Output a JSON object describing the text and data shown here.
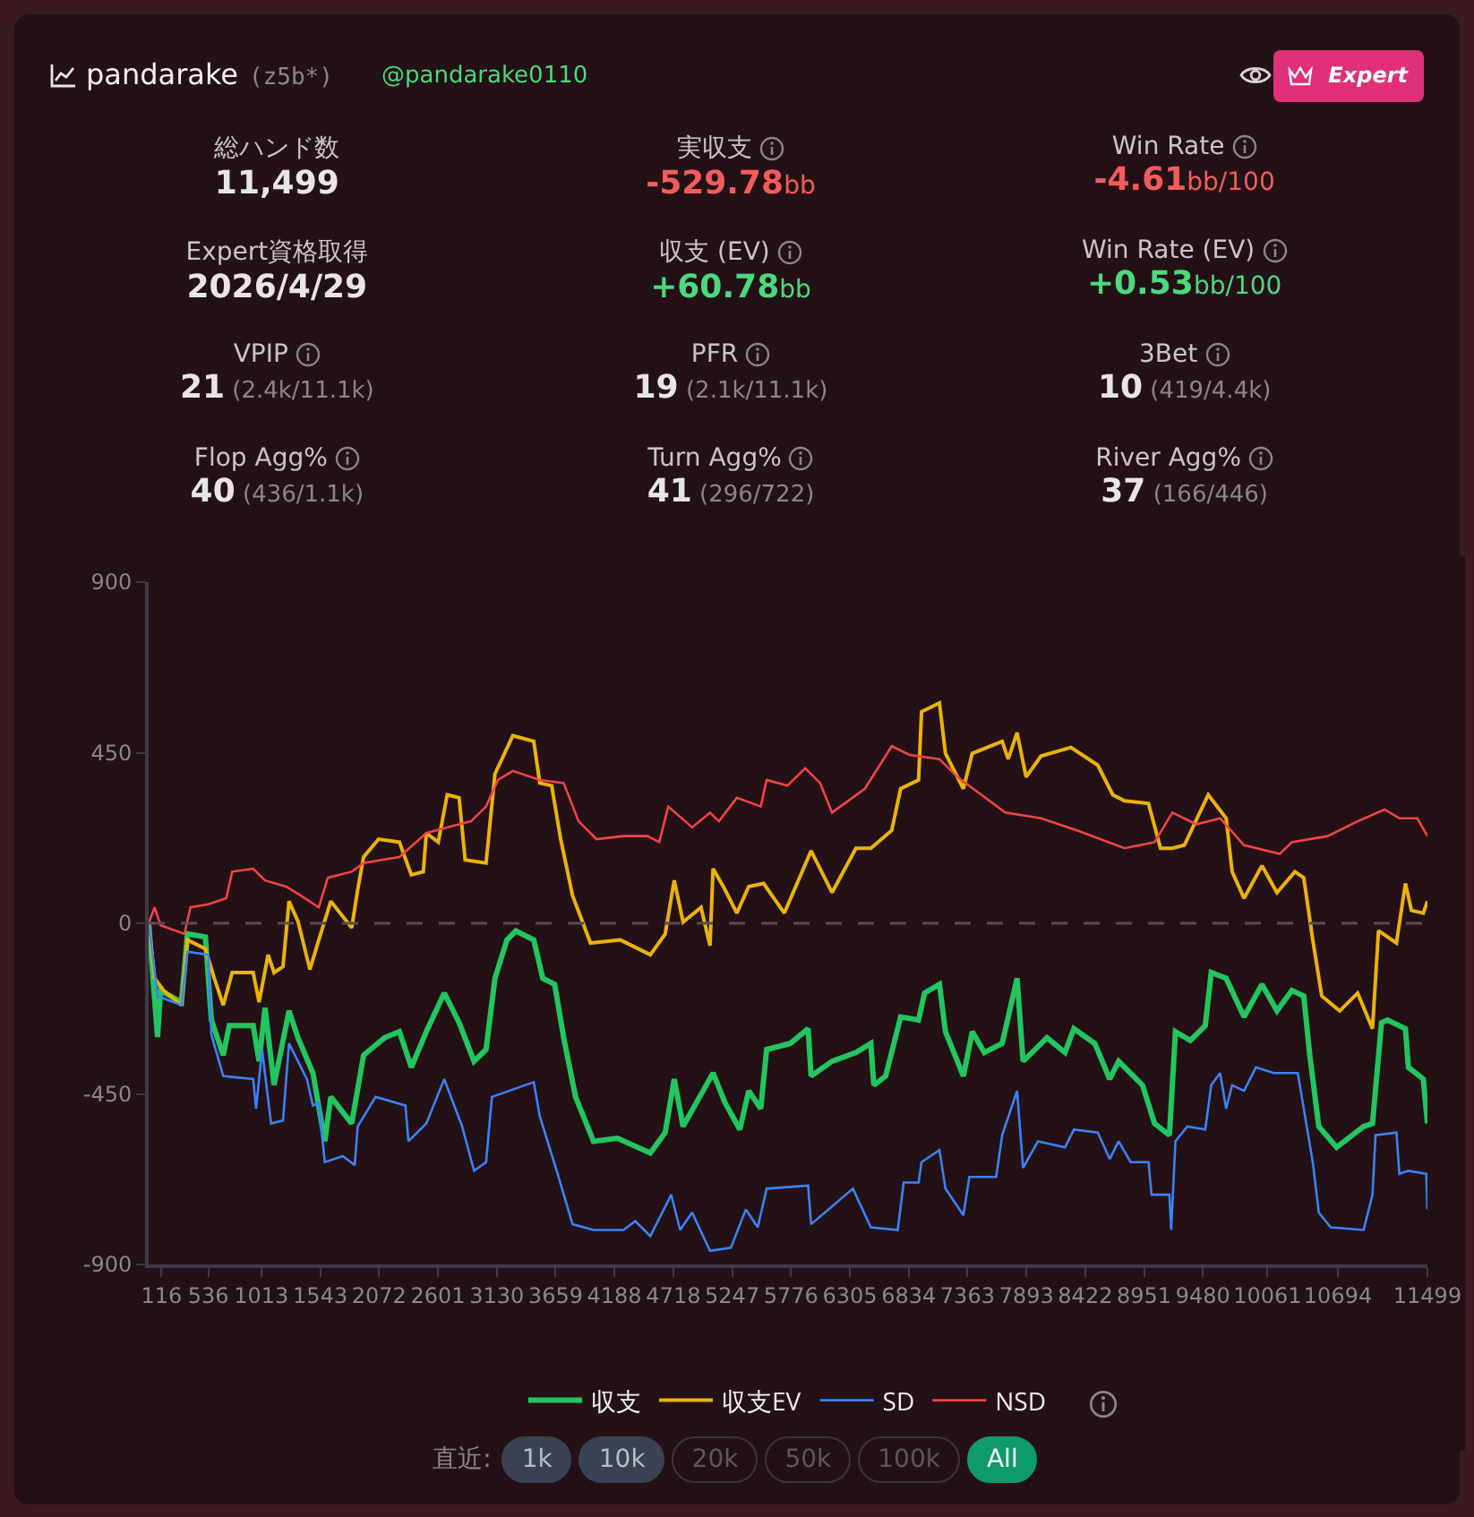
{
  "chart_data": [
    {
      "type": "other",
      "title": "pandarake",
      "subtitle": "(z5b*)",
      "annotations": [
        "@pandarake0110",
        "Expert",
        "総ハンド数",
        "11,499",
        "実収支",
        "-529.78bb",
        "Win Rate",
        "-4.61bb/100",
        "Expert資格取得",
        "2026/4/29",
        "収支 (EV)",
        "+60.78bb",
        "Win Rate (EV)",
        "+0.53bb/100",
        "VPIP",
        "21 (2.4k/11.1k)",
        "PFR",
        "19 (2.1k/11.1k)",
        "3Bet",
        "10 (419/4.4k)",
        "Flop Agg%",
        "40 (436/1.1k)",
        "Turn Agg%",
        "41 (296/722)",
        "River Agg%",
        "37 (166/446)"
      ],
      "colors": [
        "#e8e4ea",
        "#f25c5c",
        "#f25c5c",
        "#e8e4ea",
        "#4cd97b",
        "#4cd97b",
        "#e8e4ea",
        "#e8e4ea",
        "#e8e4ea",
        "#e8e4ea",
        "#e8e4ea",
        "#e8e4ea"
      ]
    },
    {
      "type": "line",
      "xlim": [
        0,
        11499
      ],
      "ylim": [
        -900,
        900
      ],
      "xticks": [
        116,
        536,
        1013,
        1543,
        2072,
        2601,
        3130,
        3659,
        4188,
        4718,
        5247,
        5776,
        6305,
        6834,
        7363,
        7893,
        8422,
        8951,
        9480,
        10061,
        10694,
        11499
      ],
      "yticks": [
        -900,
        -450,
        0,
        450,
        900
      ],
      "grid": false,
      "legend": "bottom",
      "marker": "none",
      "line_style": "solid",
      "ref_lines": [
        {
          "axis": "y",
          "value": 0,
          "line_style": "dashed",
          "color": "#5a4a55"
        }
      ],
      "annotations": [
        "直近:",
        "1k",
        "10k",
        "20k",
        "50k",
        "100k",
        "All"
      ],
      "series": [
        {
          "name": "収支",
          "color": "#22c55e",
          "x": [
            0,
            80,
            107,
            295,
            349,
            510,
            564,
            671,
            725,
            940,
            993,
            1047,
            1128,
            1262,
            1343,
            1477,
            1584,
            1638,
            1826,
            1933,
            2121,
            2255,
            2362,
            2497,
            2658,
            2792,
            2926,
            3034,
            3114,
            3222,
            3302,
            3463,
            3544,
            3651,
            3732,
            3839,
            4000,
            4215,
            4511,
            4645,
            4726,
            4806,
            5075,
            5182,
            5316,
            5396,
            5504,
            5557,
            5769,
            5930,
            5957,
            6145,
            6360,
            6494,
            6521,
            6628,
            6762,
            6923,
            6977,
            7111,
            7165,
            7326,
            7406,
            7514,
            7675,
            7809,
            7863,
            8078,
            8240,
            8320,
            8508,
            8642,
            8722,
            8937,
            9045,
            9179,
            9233,
            9367,
            9501,
            9555,
            9689,
            9850,
            10011,
            10146,
            10280,
            10387,
            10441,
            10522,
            10683,
            10925,
            11005,
            11086,
            11140,
            11301,
            11328,
            11462,
            11499
          ],
          "values": [
            0,
            -300,
            -177,
            -208,
            -28,
            -36,
            -255,
            -348,
            -270,
            -270,
            -364,
            -223,
            -427,
            -231,
            -302,
            -395,
            -575,
            -458,
            -528,
            -348,
            -302,
            -286,
            -380,
            -286,
            -184,
            -262,
            -364,
            -333,
            -145,
            -44,
            -20,
            -44,
            -145,
            -161,
            -302,
            -458,
            -575,
            -567,
            -606,
            -552,
            -411,
            -536,
            -395,
            -473,
            -544,
            -442,
            -489,
            -333,
            -317,
            -278,
            -403,
            -364,
            -341,
            -317,
            -427,
            -403,
            -247,
            -255,
            -184,
            -161,
            -286,
            -403,
            -286,
            -341,
            -317,
            -145,
            -364,
            -302,
            -341,
            -278,
            -317,
            -411,
            -364,
            -427,
            -528,
            -559,
            -286,
            -309,
            -270,
            -130,
            -145,
            -247,
            -161,
            -231,
            -177,
            -192,
            -348,
            -536,
            -591,
            -536,
            -528,
            -262,
            -255,
            -278,
            -380,
            -411,
            -528
          ]
        },
        {
          "name": "収支EV",
          "color": "#eab308",
          "x": [
            0,
            54,
            134,
            295,
            349,
            510,
            590,
            671,
            751,
            940,
            993,
            1074,
            1128,
            1208,
            1262,
            1343,
            1450,
            1530,
            1638,
            1826,
            1880,
            1933,
            2068,
            2255,
            2362,
            2470,
            2497,
            2604,
            2685,
            2792,
            2846,
            3034,
            3114,
            3275,
            3463,
            3517,
            3624,
            3705,
            3812,
            3973,
            4242,
            4511,
            4645,
            4726,
            4806,
            4967,
            5048,
            5075,
            5182,
            5289,
            5396,
            5530,
            5716,
            5957,
            6145,
            6360,
            6494,
            6682,
            6762,
            6923,
            6950,
            7111,
            7165,
            7326,
            7406,
            7675,
            7729,
            7809,
            7890,
            8024,
            8293,
            8535,
            8669,
            8776,
            8991,
            9099,
            9206,
            9313,
            9528,
            9689,
            9743,
            9850,
            10011,
            10146,
            10307,
            10387,
            10468,
            10549,
            10710,
            10871,
            11005,
            11059,
            11220,
            11301,
            11355,
            11462,
            11499
          ],
          "values": [
            0,
            -145,
            -177,
            -216,
            -44,
            -67,
            -145,
            -216,
            -130,
            -130,
            -208,
            -83,
            -130,
            -114,
            58,
            5,
            -122,
            -44,
            58,
            -12,
            89,
            175,
            222,
            214,
            128,
            136,
            238,
            214,
            339,
            331,
            167,
            159,
            394,
            495,
            480,
            370,
            363,
            222,
            73,
            -52,
            -44,
            -83,
            -28,
            113,
            3,
            42,
            -59,
            144,
            89,
            27,
            97,
            105,
            27,
            191,
            81,
            198,
            198,
            245,
            355,
            378,
            558,
            581,
            448,
            355,
            448,
            480,
            433,
            503,
            386,
            441,
            464,
            417,
            339,
            323,
            316,
            198,
            198,
            206,
            339,
            277,
            136,
            66,
            152,
            81,
            136,
            120,
            -44,
            -192,
            -231,
            -184,
            -278,
            -20,
            -52,
            105,
            34,
            27,
            58
          ]
        },
        {
          "name": "SD",
          "color": "#3b82f6",
          "x": [
            0,
            80,
            295,
            349,
            537,
            564,
            671,
            940,
            966,
            1020,
            1101,
            1208,
            1262,
            1423,
            1477,
            1530,
            1584,
            1745,
            1853,
            1880,
            2041,
            2309,
            2336,
            2497,
            2658,
            2819,
            2926,
            3034,
            3087,
            3463,
            3517,
            3678,
            3812,
            4000,
            4269,
            4376,
            4511,
            4699,
            4779,
            4887,
            5048,
            5235,
            5370,
            5477,
            5557,
            5930,
            5957,
            6333,
            6494,
            6736,
            6789,
            6923,
            6950,
            7111,
            7165,
            7326,
            7380,
            7621,
            7675,
            7809,
            7863,
            7997,
            8240,
            8320,
            8535,
            8642,
            8722,
            8830,
            8991,
            9018,
            9179,
            9195,
            9233,
            9340,
            9501,
            9555,
            9635,
            9689,
            9743,
            9850,
            9957,
            10118,
            10333,
            10414,
            10468,
            10522,
            10629,
            10925,
            11005,
            11032,
            11220,
            11247,
            11328,
            11489,
            11499
          ],
          "values": [
            0,
            -192,
            -216,
            -75,
            -83,
            -294,
            -403,
            -411,
            -489,
            -333,
            -528,
            -520,
            -317,
            -411,
            -481,
            -473,
            -630,
            -614,
            -638,
            -536,
            -458,
            -481,
            -575,
            -528,
            -411,
            -536,
            -653,
            -630,
            -458,
            -419,
            -509,
            -661,
            -794,
            -809,
            -809,
            -786,
            -825,
            -716,
            -809,
            -763,
            -864,
            -856,
            -755,
            -802,
            -700,
            -692,
            -794,
            -700,
            -802,
            -809,
            -684,
            -684,
            -630,
            -598,
            -700,
            -770,
            -669,
            -669,
            -559,
            -442,
            -645,
            -575,
            -591,
            -544,
            -552,
            -622,
            -575,
            -630,
            -630,
            -716,
            -716,
            -809,
            -575,
            -536,
            -544,
            -427,
            -395,
            -489,
            -427,
            -442,
            -380,
            -395,
            -395,
            -536,
            -630,
            -763,
            -802,
            -809,
            -716,
            -559,
            -552,
            -661,
            -653,
            -661,
            -755
          ]
        },
        {
          "name": "NSD",
          "color": "#ef4444",
          "x": [
            0,
            54,
            107,
            322,
            376,
            537,
            698,
            751,
            940,
            1047,
            1235,
            1369,
            1530,
            1611,
            1826,
            1933,
            2095,
            2255,
            2497,
            2685,
            2899,
            3034,
            3141,
            3275,
            3517,
            3732,
            3866,
            4027,
            4269,
            4484,
            4592,
            4672,
            4887,
            5048,
            5128,
            5289,
            5504,
            5557,
            5743,
            5904,
            6038,
            6145,
            6440,
            6682,
            6843,
            7111,
            7272,
            7702,
            8024,
            8347,
            8776,
            9045,
            9206,
            9420,
            9635,
            9850,
            10172,
            10280,
            10602,
            10871,
            11113,
            11247,
            11408,
            11499
          ],
          "values": [
            0,
            42,
            -5,
            -28,
            42,
            50,
            66,
            136,
            144,
            113,
            97,
            73,
            42,
            120,
            136,
            159,
            167,
            175,
            238,
            253,
            269,
            308,
            378,
            402,
            378,
            370,
            269,
            222,
            230,
            230,
            214,
            308,
            253,
            292,
            269,
            331,
            308,
            378,
            363,
            409,
            370,
            292,
            355,
            467,
            444,
            433,
            386,
            292,
            277,
            245,
            198,
            214,
            292,
            261,
            277,
            206,
            183,
            214,
            230,
            269,
            300,
            277,
            277,
            230
          ]
        }
      ]
    }
  ]
}
